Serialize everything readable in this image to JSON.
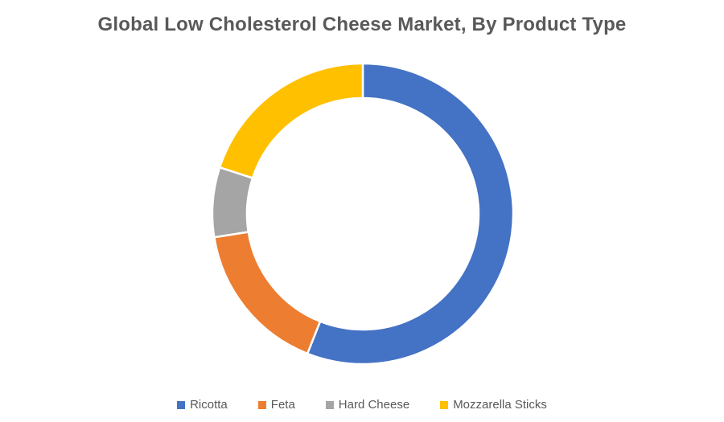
{
  "chart_data": {
    "type": "pie",
    "subtype": "donut",
    "title": "Global Low Cholesterol Cheese Market, By Product Type",
    "categories": [
      "Ricotta",
      "Feta",
      "Hard Cheese",
      "Mozzarella Sticks"
    ],
    "values": [
      56,
      16.5,
      7.5,
      20
    ],
    "values_note": "percent shares estimated from arc angles; no data labels visible in chart",
    "colors": [
      "#4472C4",
      "#ED7D31",
      "#A5A5A5",
      "#FFC000"
    ],
    "start_angle_deg": 0,
    "direction": "clockwise",
    "donut_hole_ratio": 0.77,
    "separator_color": "#FFFFFF",
    "legend_position": "bottom",
    "title_color": "#595959",
    "legend_text_color": "#595959",
    "background_color": "#FFFFFF"
  }
}
